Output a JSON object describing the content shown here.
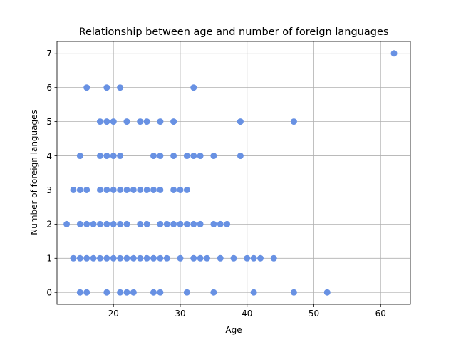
{
  "chart_data": {
    "type": "scatter",
    "title": "Relationship between age and number of foreign languages",
    "xlabel": "Age",
    "ylabel": "Number of foreign languages",
    "xlim": [
      11.55,
      64.45
    ],
    "ylim": [
      -0.35,
      7.35
    ],
    "xticks": [
      20,
      30,
      40,
      50,
      60
    ],
    "yticks": [
      0,
      1,
      2,
      3,
      4,
      5,
      6,
      7
    ],
    "grid": true,
    "point_color": "#6891e3",
    "points": [
      {
        "x": 15,
        "y": 0
      },
      {
        "x": 16,
        "y": 0
      },
      {
        "x": 19,
        "y": 0
      },
      {
        "x": 21,
        "y": 0
      },
      {
        "x": 22,
        "y": 0
      },
      {
        "x": 23,
        "y": 0
      },
      {
        "x": 26,
        "y": 0
      },
      {
        "x": 27,
        "y": 0
      },
      {
        "x": 31,
        "y": 0
      },
      {
        "x": 35,
        "y": 0
      },
      {
        "x": 41,
        "y": 0
      },
      {
        "x": 47,
        "y": 0
      },
      {
        "x": 52,
        "y": 0
      },
      {
        "x": 14,
        "y": 1
      },
      {
        "x": 15,
        "y": 1
      },
      {
        "x": 16,
        "y": 1
      },
      {
        "x": 17,
        "y": 1
      },
      {
        "x": 18,
        "y": 1
      },
      {
        "x": 19,
        "y": 1
      },
      {
        "x": 20,
        "y": 1
      },
      {
        "x": 21,
        "y": 1
      },
      {
        "x": 22,
        "y": 1
      },
      {
        "x": 23,
        "y": 1
      },
      {
        "x": 24,
        "y": 1
      },
      {
        "x": 25,
        "y": 1
      },
      {
        "x": 26,
        "y": 1
      },
      {
        "x": 27,
        "y": 1
      },
      {
        "x": 28,
        "y": 1
      },
      {
        "x": 30,
        "y": 1
      },
      {
        "x": 32,
        "y": 1
      },
      {
        "x": 33,
        "y": 1
      },
      {
        "x": 34,
        "y": 1
      },
      {
        "x": 36,
        "y": 1
      },
      {
        "x": 38,
        "y": 1
      },
      {
        "x": 40,
        "y": 1
      },
      {
        "x": 41,
        "y": 1
      },
      {
        "x": 42,
        "y": 1
      },
      {
        "x": 44,
        "y": 1
      },
      {
        "x": 13,
        "y": 2
      },
      {
        "x": 15,
        "y": 2
      },
      {
        "x": 16,
        "y": 2
      },
      {
        "x": 17,
        "y": 2
      },
      {
        "x": 18,
        "y": 2
      },
      {
        "x": 19,
        "y": 2
      },
      {
        "x": 20,
        "y": 2
      },
      {
        "x": 21,
        "y": 2
      },
      {
        "x": 22,
        "y": 2
      },
      {
        "x": 24,
        "y": 2
      },
      {
        "x": 25,
        "y": 2
      },
      {
        "x": 27,
        "y": 2
      },
      {
        "x": 28,
        "y": 2
      },
      {
        "x": 29,
        "y": 2
      },
      {
        "x": 30,
        "y": 2
      },
      {
        "x": 31,
        "y": 2
      },
      {
        "x": 32,
        "y": 2
      },
      {
        "x": 33,
        "y": 2
      },
      {
        "x": 35,
        "y": 2
      },
      {
        "x": 36,
        "y": 2
      },
      {
        "x": 37,
        "y": 2
      },
      {
        "x": 14,
        "y": 3
      },
      {
        "x": 15,
        "y": 3
      },
      {
        "x": 16,
        "y": 3
      },
      {
        "x": 18,
        "y": 3
      },
      {
        "x": 19,
        "y": 3
      },
      {
        "x": 20,
        "y": 3
      },
      {
        "x": 21,
        "y": 3
      },
      {
        "x": 22,
        "y": 3
      },
      {
        "x": 23,
        "y": 3
      },
      {
        "x": 24,
        "y": 3
      },
      {
        "x": 25,
        "y": 3
      },
      {
        "x": 26,
        "y": 3
      },
      {
        "x": 27,
        "y": 3
      },
      {
        "x": 29,
        "y": 3
      },
      {
        "x": 30,
        "y": 3
      },
      {
        "x": 31,
        "y": 3
      },
      {
        "x": 15,
        "y": 4
      },
      {
        "x": 18,
        "y": 4
      },
      {
        "x": 19,
        "y": 4
      },
      {
        "x": 20,
        "y": 4
      },
      {
        "x": 21,
        "y": 4
      },
      {
        "x": 26,
        "y": 4
      },
      {
        "x": 27,
        "y": 4
      },
      {
        "x": 29,
        "y": 4
      },
      {
        "x": 31,
        "y": 4
      },
      {
        "x": 32,
        "y": 4
      },
      {
        "x": 33,
        "y": 4
      },
      {
        "x": 35,
        "y": 4
      },
      {
        "x": 39,
        "y": 4
      },
      {
        "x": 18,
        "y": 5
      },
      {
        "x": 19,
        "y": 5
      },
      {
        "x": 20,
        "y": 5
      },
      {
        "x": 22,
        "y": 5
      },
      {
        "x": 24,
        "y": 5
      },
      {
        "x": 25,
        "y": 5
      },
      {
        "x": 27,
        "y": 5
      },
      {
        "x": 29,
        "y": 5
      },
      {
        "x": 39,
        "y": 5
      },
      {
        "x": 47,
        "y": 5
      },
      {
        "x": 16,
        "y": 6
      },
      {
        "x": 19,
        "y": 6
      },
      {
        "x": 21,
        "y": 6
      },
      {
        "x": 32,
        "y": 6
      },
      {
        "x": 62,
        "y": 7
      }
    ]
  }
}
